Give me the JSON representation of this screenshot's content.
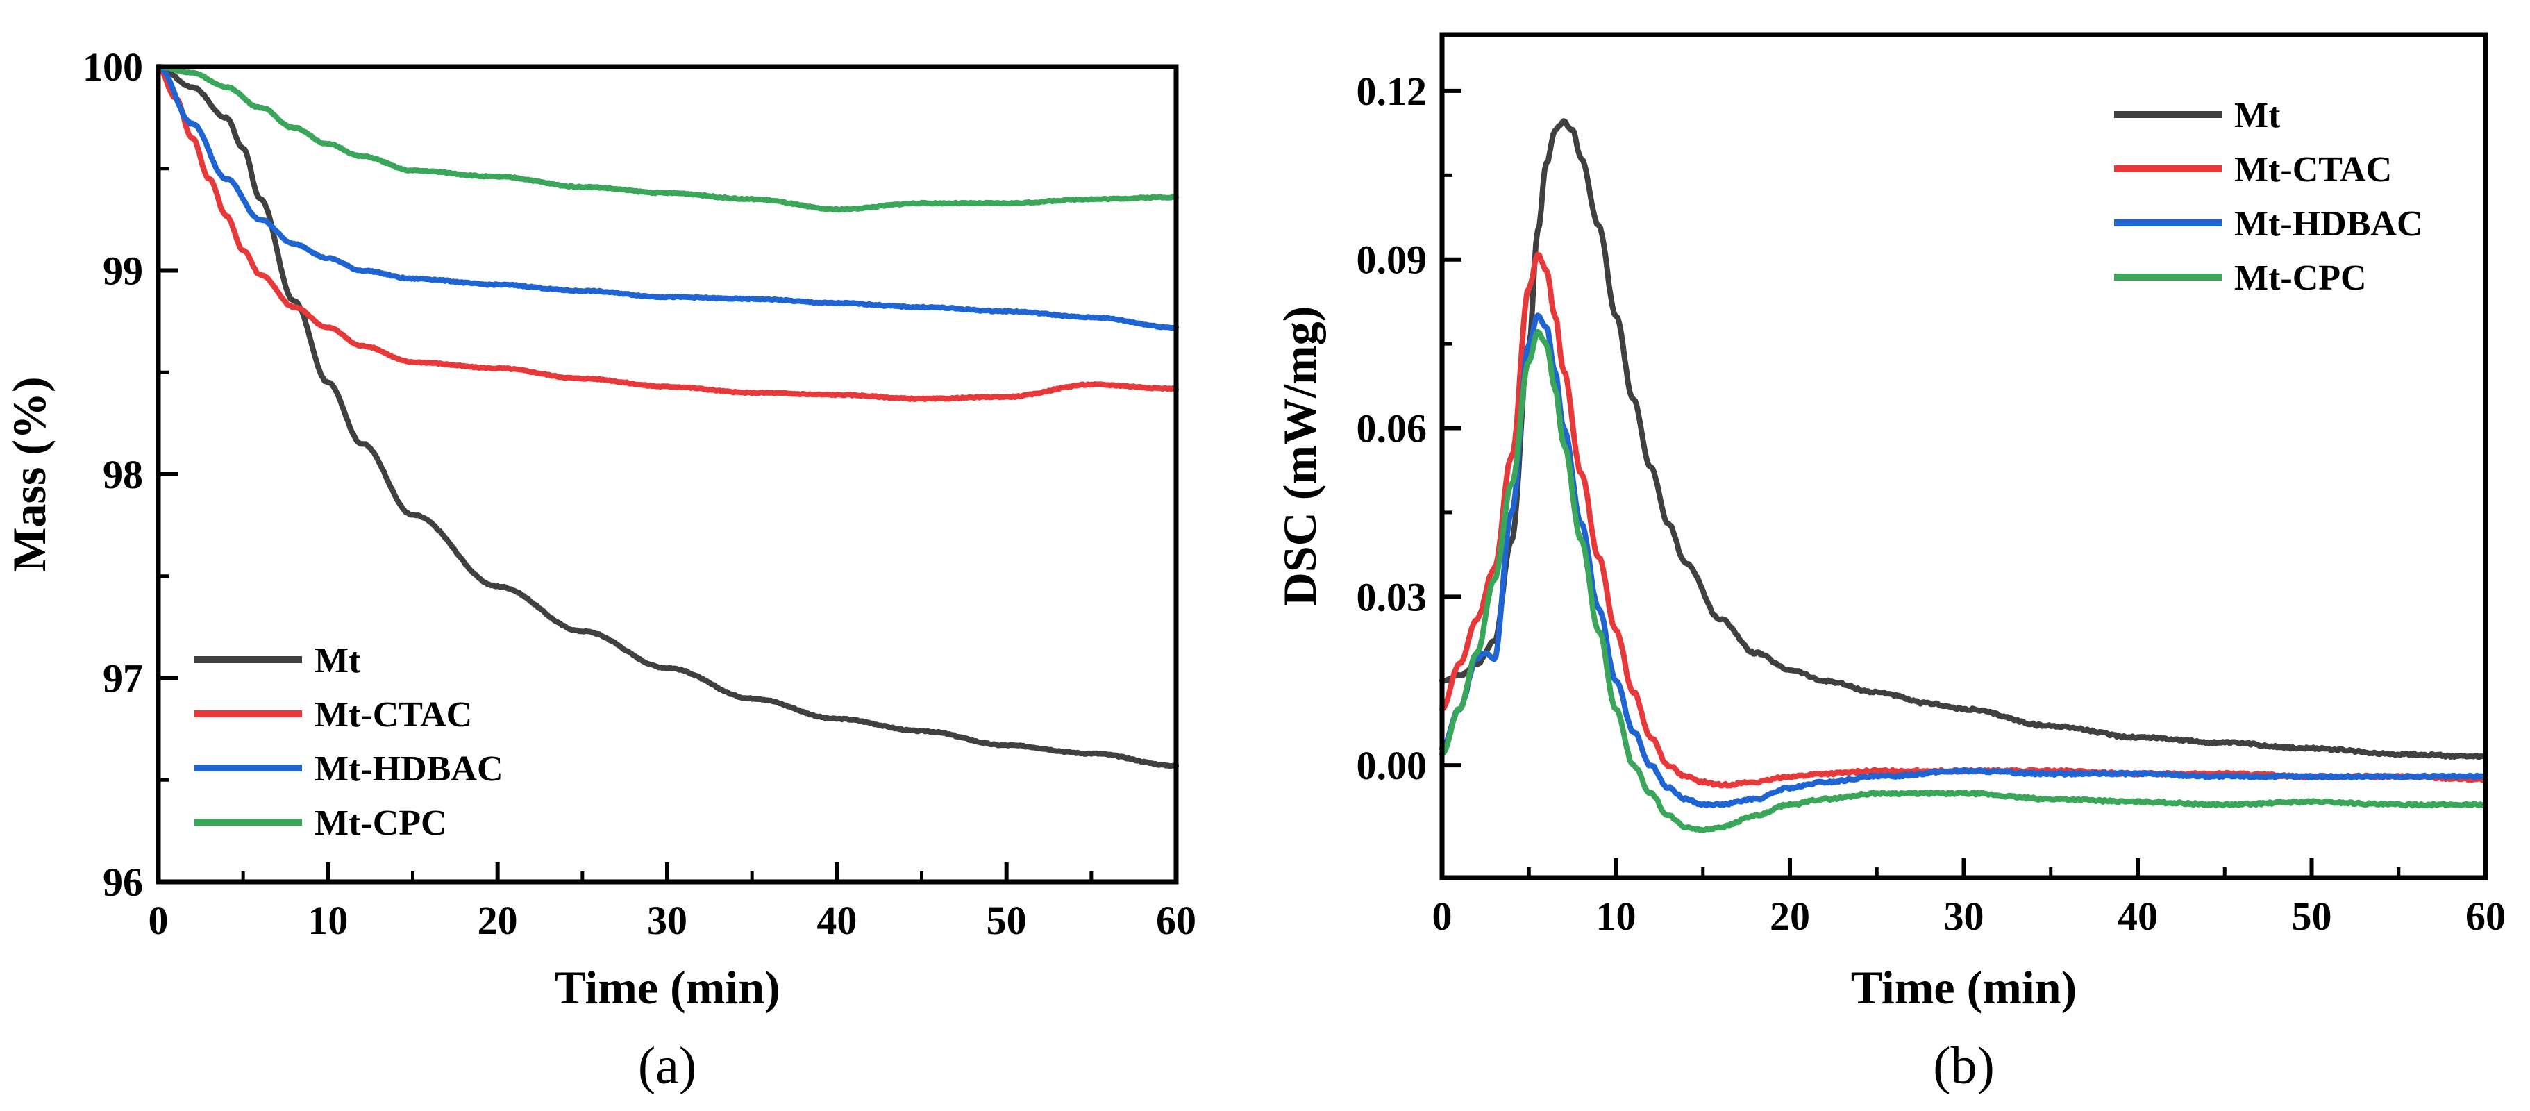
{
  "chart_data": [
    {
      "type": "line",
      "panel_label": "(a)",
      "xlabel": "Time (min)",
      "ylabel": "Mass (%)",
      "xlim": [
        0,
        60
      ],
      "ylim": [
        96,
        100
      ],
      "xticks": [
        "0",
        "10",
        "20",
        "30",
        "40",
        "50",
        "60"
      ],
      "yticks": [
        "96",
        "97",
        "98",
        "99",
        "100"
      ],
      "legend_position": "bottom-left",
      "series": [
        {
          "name": "Mt",
          "color": "#404040",
          "x": [
            0,
            2,
            4,
            5,
            6,
            8,
            10,
            12,
            15,
            20,
            25,
            30,
            35,
            40,
            45,
            50,
            55,
            60
          ],
          "y": [
            100,
            99.9,
            99.75,
            99.6,
            99.35,
            98.85,
            98.45,
            98.15,
            97.8,
            97.45,
            97.23,
            97.05,
            96.9,
            96.8,
            96.74,
            96.67,
            96.63,
            96.57
          ]
        },
        {
          "name": "Mt-CTAC",
          "color": "#e8393a",
          "x": [
            0,
            1,
            2,
            3,
            4,
            5,
            6,
            8,
            10,
            12,
            15,
            20,
            25,
            30,
            35,
            40,
            45,
            50,
            55,
            60
          ],
          "y": [
            100,
            99.85,
            99.65,
            99.45,
            99.27,
            99.1,
            98.98,
            98.82,
            98.72,
            98.63,
            98.55,
            98.52,
            98.47,
            98.43,
            98.4,
            98.39,
            98.37,
            98.38,
            98.44,
            98.42
          ]
        },
        {
          "name": "Mt-HDBAC",
          "color": "#1e64d2",
          "x": [
            0,
            2,
            4,
            6,
            8,
            10,
            12,
            15,
            20,
            25,
            30,
            35,
            40,
            45,
            50,
            55,
            60
          ],
          "y": [
            100,
            99.72,
            99.45,
            99.25,
            99.13,
            99.06,
            99.0,
            98.96,
            98.93,
            98.9,
            98.87,
            98.86,
            98.84,
            98.82,
            98.8,
            98.77,
            98.72
          ]
        },
        {
          "name": "Mt-CPC",
          "color": "#3aa65a",
          "x": [
            0,
            2,
            4,
            6,
            8,
            10,
            12,
            15,
            20,
            25,
            30,
            35,
            40,
            45,
            50,
            55,
            60
          ],
          "y": [
            100,
            99.97,
            99.9,
            99.8,
            99.7,
            99.62,
            99.56,
            99.49,
            99.46,
            99.41,
            99.38,
            99.35,
            99.3,
            99.33,
            99.33,
            99.35,
            99.36
          ]
        }
      ]
    },
    {
      "type": "line",
      "panel_label": "(b)",
      "xlabel": "Time (min)",
      "ylabel": "DSC (mW/mg)",
      "xlim": [
        0,
        60
      ],
      "ylim": [
        -0.02,
        0.13
      ],
      "xticks": [
        "0",
        "10",
        "20",
        "30",
        "40",
        "50",
        "60"
      ],
      "yticks": [
        "0.00",
        "0.03",
        "0.06",
        "0.09",
        "0.12"
      ],
      "legend_position": "top-right",
      "series": [
        {
          "name": "Mt",
          "color": "#404040",
          "x": [
            0,
            1,
            2,
            3,
            4,
            5,
            5.5,
            6,
            6.5,
            7,
            7.5,
            8,
            9,
            10,
            11,
            12,
            13,
            14,
            16,
            18,
            20,
            22,
            25,
            28,
            30,
            35,
            40,
            45,
            50,
            55,
            60
          ],
          "y": [
            0.015,
            0.016,
            0.018,
            0.022,
            0.04,
            0.075,
            0.095,
            0.107,
            0.113,
            0.1145,
            0.113,
            0.108,
            0.096,
            0.08,
            0.065,
            0.053,
            0.043,
            0.036,
            0.026,
            0.02,
            0.017,
            0.015,
            0.013,
            0.011,
            0.01,
            0.007,
            0.005,
            0.004,
            0.003,
            0.002,
            0.0015
          ]
        },
        {
          "name": "Mt-CTAC",
          "color": "#e8393a",
          "x": [
            0,
            1,
            2,
            3,
            4,
            5,
            5.5,
            6,
            6.5,
            7,
            8,
            9,
            10,
            11,
            12,
            13,
            14,
            15,
            16,
            18,
            20,
            22,
            25,
            30,
            35,
            40,
            45,
            50,
            55,
            60
          ],
          "y": [
            0.01,
            0.018,
            0.026,
            0.035,
            0.055,
            0.085,
            0.091,
            0.088,
            0.08,
            0.07,
            0.052,
            0.037,
            0.024,
            0.013,
            0.005,
            0.0,
            -0.002,
            -0.003,
            -0.0035,
            -0.003,
            -0.002,
            -0.0015,
            -0.001,
            -0.001,
            -0.001,
            -0.0015,
            -0.0015,
            -0.002,
            -0.002,
            -0.0025
          ]
        },
        {
          "name": "Mt-HDBAC",
          "color": "#1e64d2",
          "x": [
            0,
            1,
            2,
            2.5,
            3,
            4,
            5,
            5.5,
            6,
            6.5,
            7,
            8,
            9,
            10,
            11,
            12,
            13,
            14,
            15,
            16,
            18,
            20,
            22,
            25,
            30,
            35,
            40,
            45,
            50,
            55,
            60
          ],
          "y": [
            0.003,
            0.01,
            0.019,
            0.02,
            0.019,
            0.045,
            0.075,
            0.08,
            0.078,
            0.07,
            0.06,
            0.043,
            0.028,
            0.015,
            0.006,
            0.0,
            -0.004,
            -0.006,
            -0.007,
            -0.007,
            -0.006,
            -0.004,
            -0.003,
            -0.002,
            -0.001,
            -0.0015,
            -0.0015,
            -0.002,
            -0.002,
            -0.002,
            -0.002
          ]
        },
        {
          "name": "Mt-CPC",
          "color": "#3aa65a",
          "x": [
            0,
            1,
            2,
            3,
            4,
            5,
            5.5,
            6,
            6.5,
            7,
            8,
            9,
            10,
            11,
            12,
            13,
            14,
            15,
            16,
            18,
            20,
            22,
            25,
            28,
            30,
            35,
            40,
            45,
            50,
            55,
            60
          ],
          "y": [
            0.002,
            0.01,
            0.02,
            0.033,
            0.05,
            0.072,
            0.077,
            0.075,
            0.067,
            0.057,
            0.04,
            0.024,
            0.01,
            0.0,
            -0.005,
            -0.009,
            -0.011,
            -0.0115,
            -0.011,
            -0.009,
            -0.007,
            -0.006,
            -0.005,
            -0.005,
            -0.005,
            -0.006,
            -0.0065,
            -0.007,
            -0.0065,
            -0.007,
            -0.007
          ]
        }
      ]
    }
  ]
}
